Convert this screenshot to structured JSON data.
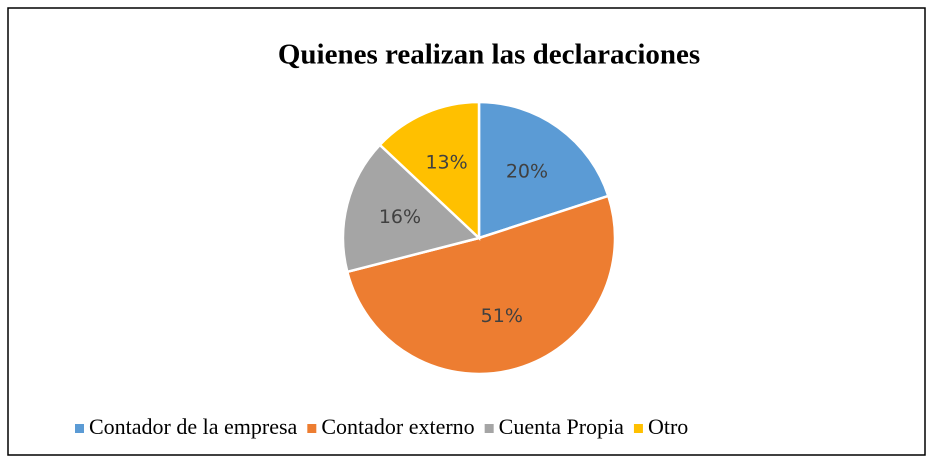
{
  "chart_data": {
    "type": "pie",
    "title": "Quienes realizan las declaraciones",
    "categories": [
      "Contador de la empresa",
      "Contador externo",
      "Cuenta Propia",
      "Otro"
    ],
    "values": [
      20,
      51,
      16,
      13
    ],
    "value_labels": [
      "20%",
      "51%",
      "16%",
      "13%"
    ],
    "colors": [
      "#5b9bd5",
      "#ed7d31",
      "#a5a5a5",
      "#ffc000"
    ],
    "legend": "bottom"
  }
}
